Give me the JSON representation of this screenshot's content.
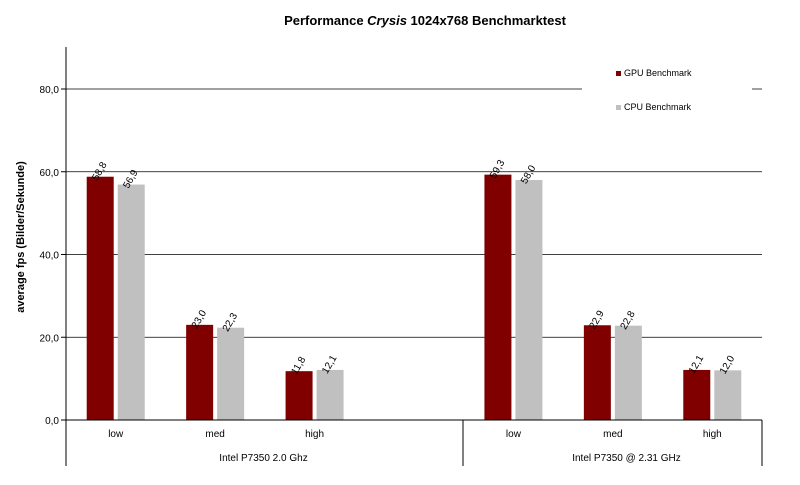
{
  "chart_data": {
    "type": "bar",
    "title_prefix": "Performance ",
    "title_game": "Crysis",
    "title_suffix": " 1024x768  Benchmarktest",
    "ylabel": "average fps (Bilder/Sekunde)",
    "ylim": [
      0,
      100
    ],
    "yticks": [
      "0,0",
      "20,0",
      "40,0",
      "60,0",
      "80,0"
    ],
    "ytick_values": [
      0,
      20,
      40,
      60,
      80
    ],
    "grid": true,
    "legend_position": "top-right",
    "groups": [
      {
        "name": "Intel P7350 2.0 Ghz",
        "categories": [
          "low",
          "med",
          "high"
        ]
      },
      {
        "name": "Intel P7350 @ 2.31 GHz",
        "categories": [
          "low",
          "med",
          "high"
        ]
      }
    ],
    "series": [
      {
        "name": "GPU Benchmark",
        "color": "#800000",
        "values": [
          58.8,
          23.0,
          11.8,
          59.3,
          22.9,
          12.1
        ],
        "labels": [
          "58,8",
          "23,0",
          "11,8",
          "59,3",
          "22,9",
          "12,1"
        ]
      },
      {
        "name": "CPU Benchmark",
        "color": "#c0c0c0",
        "values": [
          56.9,
          22.3,
          12.1,
          58.0,
          22.8,
          12.0
        ],
        "labels": [
          "56,9",
          "22,3",
          "12,1",
          "58,0",
          "22,8",
          "12,0"
        ]
      }
    ]
  }
}
